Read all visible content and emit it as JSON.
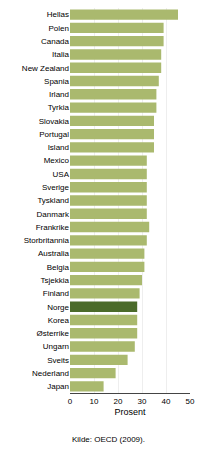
{
  "chart_data": {
    "type": "bar",
    "orientation": "horizontal",
    "categories": [
      "Hellas",
      "Polen",
      "Canada",
      "Italia",
      "New Zealand",
      "Spania",
      "Irland",
      "Tyrkia",
      "Slovakia",
      "Portugal",
      "Island",
      "Mexico",
      "USA",
      "Sverige",
      "Tyskland",
      "Danmark",
      "Frankrike",
      "Storbritannia",
      "Australia",
      "Belgia",
      "Tsjekkia",
      "Finland",
      "Norge",
      "Korea",
      "Østerrike",
      "Ungarn",
      "Sveits",
      "Nederland",
      "Japan"
    ],
    "values": [
      45,
      39,
      39,
      38,
      38,
      37,
      36,
      36,
      35,
      35,
      35,
      32,
      32,
      32,
      32,
      32,
      33,
      32,
      31,
      31,
      30,
      29,
      28,
      28,
      28,
      27,
      24,
      19,
      14
    ],
    "colors": [
      "#aab96e",
      "#aab96e",
      "#aab96e",
      "#aab96e",
      "#aab96e",
      "#aab96e",
      "#aab96e",
      "#aab96e",
      "#aab96e",
      "#aab96e",
      "#aab96e",
      "#aab96e",
      "#aab96e",
      "#aab96e",
      "#aab96e",
      "#aab96e",
      "#aab96e",
      "#aab96e",
      "#aab96e",
      "#aab96e",
      "#aab96e",
      "#aab96e",
      "#4b6b2a",
      "#aab96e",
      "#aab96e",
      "#aab96e",
      "#aab96e",
      "#aab96e",
      "#aab96e"
    ],
    "xlabel": "Prosent",
    "xlim": [
      0,
      50
    ],
    "xticks": [
      0,
      10,
      20,
      30,
      40,
      50
    ],
    "grid": true,
    "annotations": [
      "Kilde: OECD (2009)."
    ]
  }
}
